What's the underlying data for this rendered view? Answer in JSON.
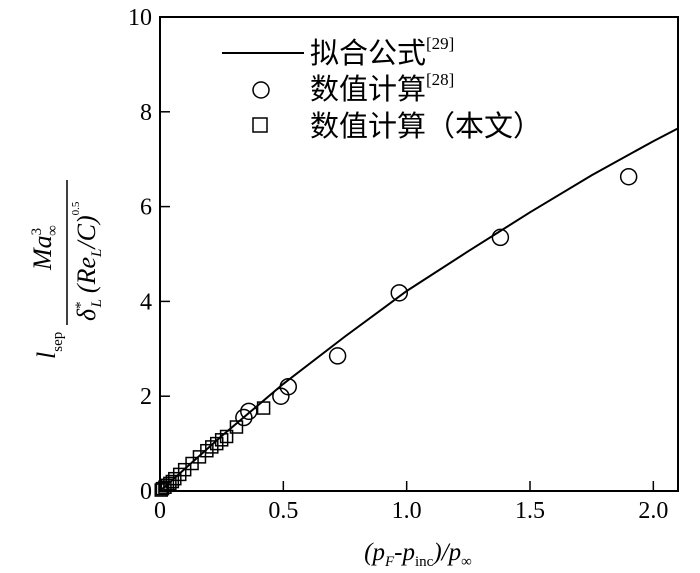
{
  "chart_data": {
    "type": "scatter",
    "xlim": [
      0,
      2.1
    ],
    "ylim": [
      0,
      10
    ],
    "grid": false,
    "legend_position": "top-left",
    "x_ticks": [
      0,
      0.5,
      1.0,
      1.5,
      2.0
    ],
    "x_tick_labels": [
      "0",
      "0.5",
      "1.0",
      "1.5",
      "2.0"
    ],
    "y_ticks": [
      0,
      2,
      4,
      6,
      8,
      10
    ],
    "y_tick_labels": [
      "0",
      "2",
      "4",
      "6",
      "8",
      "10"
    ],
    "xlabel": {
      "open": "(p",
      "sub1": "F",
      "dash": "-p",
      "sub2": "inc",
      "slash": ")/p",
      "sub3": "∞"
    },
    "ylabel": {
      "l": "l",
      "l_sub": "sep",
      "Ma": "Ma",
      "Ma_sup": "3",
      "Ma_sub": "∞",
      "delta": "δ",
      "delta_sup": "*",
      "delta_sub": "L",
      "paren_open": "(Re",
      "Re_sub": "L",
      "paren_close": "/C)",
      "exp": "0.5"
    },
    "series": [
      {
        "name": "拟合公式",
        "ref": "[29]",
        "style": "line",
        "x": [
          0,
          0.25,
          0.5,
          0.75,
          1.0,
          1.25,
          1.5,
          1.75,
          2.0,
          2.1
        ],
        "y": [
          0,
          1.16,
          2.26,
          3.26,
          4.22,
          5.06,
          5.88,
          6.66,
          7.38,
          7.65
        ]
      },
      {
        "name": "数值计算",
        "ref": "[28]",
        "style": "circle",
        "x": [
          0.34,
          0.36,
          0.49,
          0.52,
          0.72,
          0.97,
          1.38,
          1.9
        ],
        "y": [
          1.55,
          1.68,
          2.0,
          2.2,
          2.85,
          4.18,
          5.35,
          6.63
        ]
      },
      {
        "name": "数值计算（本文）",
        "ref": "",
        "style": "square",
        "x": [
          0.005,
          0.01,
          0.02,
          0.03,
          0.04,
          0.05,
          0.06,
          0.08,
          0.1,
          0.13,
          0.16,
          0.19,
          0.21,
          0.23,
          0.25,
          0.27,
          0.31,
          0.42
        ],
        "y": [
          0.02,
          0.05,
          0.08,
          0.12,
          0.16,
          0.2,
          0.26,
          0.35,
          0.45,
          0.58,
          0.72,
          0.85,
          0.93,
          1.0,
          1.08,
          1.15,
          1.35,
          1.75
        ]
      }
    ]
  }
}
